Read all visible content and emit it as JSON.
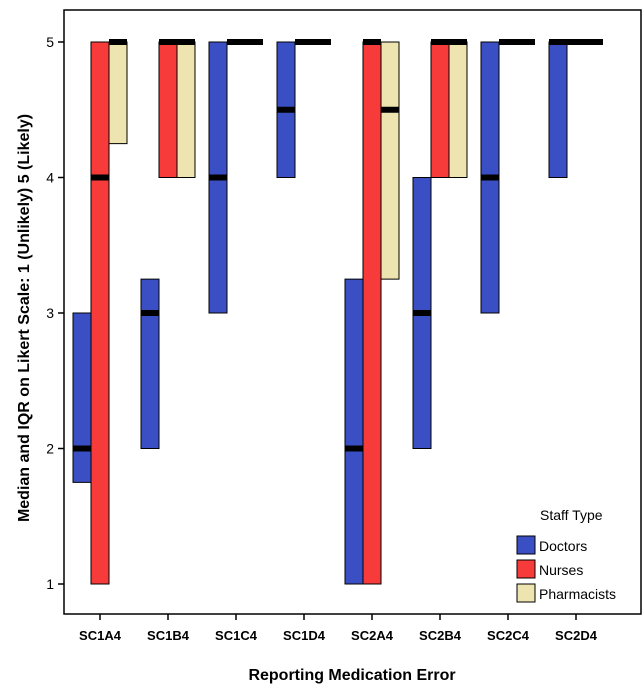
{
  "chart_data": {
    "type": "box",
    "xlabel": "Reporting Medication Error",
    "ylabel": "Median and IQR on Likert Scale: 1 (Unlikely) 5 (Likely)",
    "ylim": [
      1,
      5
    ],
    "yticks": [
      1,
      2,
      3,
      4,
      5
    ],
    "categories": [
      "SC1A4",
      "SC1B4",
      "SC1C4",
      "SC1D4",
      "SC2A4",
      "SC2B4",
      "SC2C4",
      "SC2D4"
    ],
    "legend": {
      "title": "Staff Type",
      "position": "bottom-right"
    },
    "series": [
      {
        "name": "Doctors",
        "color": "#3b4fc4",
        "q1": [
          1.75,
          2,
          3,
          4,
          1,
          2,
          3,
          4
        ],
        "median": [
          2,
          3,
          4,
          4.5,
          2,
          3,
          4,
          5
        ],
        "q3": [
          3,
          3.25,
          5,
          5,
          3.25,
          4,
          5,
          5
        ]
      },
      {
        "name": "Nurses",
        "color": "#f73b3b",
        "q1": [
          1,
          4,
          5,
          5,
          1,
          4,
          5,
          5
        ],
        "median": [
          4,
          5,
          5,
          5,
          5,
          5,
          5,
          5
        ],
        "q3": [
          5,
          5,
          5,
          5,
          5,
          5,
          5,
          5
        ]
      },
      {
        "name": "Pharmacists",
        "color": "#ede4b0",
        "q1": [
          4.25,
          4,
          5,
          5,
          3.25,
          4,
          5,
          5
        ],
        "median": [
          5,
          5,
          5,
          5,
          4.5,
          5,
          5,
          5
        ],
        "q3": [
          5,
          5,
          5,
          5,
          5,
          5,
          5,
          5
        ]
      }
    ]
  }
}
